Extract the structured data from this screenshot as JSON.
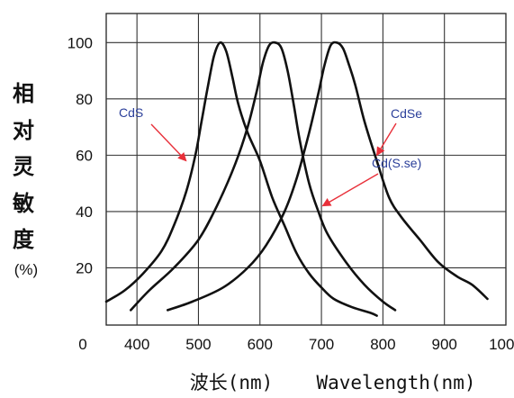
{
  "chart_data": {
    "type": "line",
    "xlabel": "波长(nm)",
    "xlabel_en": "Wavelength(nm)",
    "ylabel_chars": [
      "相",
      "对",
      "灵",
      "敏",
      "度",
      "(%)"
    ],
    "x_origin_label": "0",
    "xlim": [
      350,
      1000
    ],
    "ylim": [
      0,
      105
    ],
    "x_ticks": [
      400,
      500,
      600,
      700,
      800,
      900,
      1000
    ],
    "y_ticks": [
      20,
      40,
      60,
      80,
      100
    ],
    "grid": true,
    "colors": {
      "curve": "#111111",
      "annotation": "#2b3f9a",
      "arrow": "#e8303a"
    },
    "series": [
      {
        "name": "CdS",
        "points": [
          [
            350,
            8
          ],
          [
            380,
            12
          ],
          [
            410,
            18
          ],
          [
            440,
            26
          ],
          [
            460,
            35
          ],
          [
            480,
            47
          ],
          [
            495,
            60
          ],
          [
            505,
            72
          ],
          [
            515,
            84
          ],
          [
            525,
            95
          ],
          [
            535,
            100
          ],
          [
            545,
            97
          ],
          [
            555,
            88
          ],
          [
            565,
            78
          ],
          [
            580,
            68
          ],
          [
            600,
            58
          ],
          [
            620,
            45
          ],
          [
            640,
            35
          ],
          [
            660,
            25
          ],
          [
            680,
            18
          ],
          [
            700,
            13
          ],
          [
            720,
            9
          ],
          [
            750,
            6
          ],
          [
            780,
            4
          ],
          [
            790,
            3
          ]
        ]
      },
      {
        "name": "Cd(S.se)",
        "points": [
          [
            390,
            5
          ],
          [
            420,
            12
          ],
          [
            460,
            20
          ],
          [
            500,
            30
          ],
          [
            530,
            42
          ],
          [
            560,
            57
          ],
          [
            580,
            70
          ],
          [
            595,
            83
          ],
          [
            605,
            93
          ],
          [
            615,
            99
          ],
          [
            625,
            100
          ],
          [
            635,
            98
          ],
          [
            645,
            90
          ],
          [
            655,
            78
          ],
          [
            665,
            65
          ],
          [
            680,
            50
          ],
          [
            695,
            40
          ],
          [
            710,
            32
          ],
          [
            740,
            22
          ],
          [
            770,
            14
          ],
          [
            800,
            8
          ],
          [
            820,
            5
          ]
        ]
      },
      {
        "name": "CdSe",
        "points": [
          [
            450,
            5
          ],
          [
            490,
            8
          ],
          [
            540,
            13
          ],
          [
            580,
            20
          ],
          [
            610,
            28
          ],
          [
            640,
            40
          ],
          [
            660,
            52
          ],
          [
            680,
            68
          ],
          [
            695,
            82
          ],
          [
            705,
            92
          ],
          [
            715,
            99
          ],
          [
            725,
            100
          ],
          [
            735,
            98
          ],
          [
            745,
            92
          ],
          [
            755,
            85
          ],
          [
            770,
            72
          ],
          [
            790,
            58
          ],
          [
            810,
            45
          ],
          [
            830,
            38
          ],
          [
            860,
            30
          ],
          [
            890,
            22
          ],
          [
            920,
            17
          ],
          [
            945,
            14
          ],
          [
            970,
            9
          ]
        ]
      }
    ],
    "annotations": [
      {
        "text": "CdS",
        "target": [
          480,
          58
        ]
      },
      {
        "text": "CdSe",
        "target": [
          790,
          60
        ]
      },
      {
        "text": "Cd(S.se)",
        "target": [
          702,
          42
        ]
      }
    ]
  }
}
